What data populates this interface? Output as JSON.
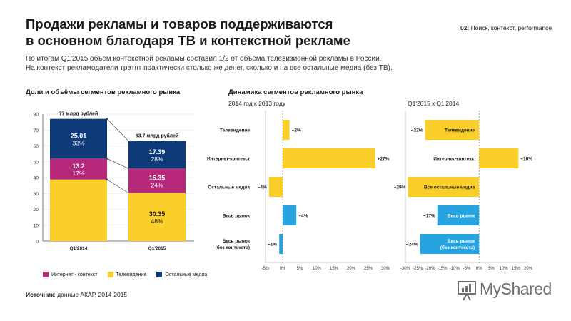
{
  "title_lines": [
    "Продажи рекламы и товаров поддерживаются",
    "в основном благодаря ТВ и контекстной рекламе"
  ],
  "section_tag": {
    "num": "02:",
    "text": " Поиск, контекст, performance"
  },
  "subtitle_lines": [
    "По итогам Q1'2015 объем контекстной рекламы составил 1/2 от объёма телевизионной рекламы в России.",
    "На контекст рекламодатели тратят практически столько же денег, сколько и на все остальные медиа (без ТВ)."
  ],
  "left_block_title": "Доли и объёмы сегментов рекламного рынка",
  "right_block_title": "Динамика сегментов рекламного рынка",
  "panel1_label": "2014 год  к 2013 году",
  "panel2_label": "Q1'2015 к Q1'2014",
  "source": {
    "label": "Источник",
    "text": ": данные АКАР, 2014-2015"
  },
  "colors": {
    "internet": "#b5287a",
    "tv": "#fbcf2a",
    "other": "#0e3a79",
    "blue": "#27a4e0"
  },
  "watermark": {
    "text": "MyShared"
  },
  "chart_data": [
    {
      "type": "bar",
      "stacked": true,
      "categories": [
        "Q1'2014",
        "Q1'2015"
      ],
      "totals": [
        "77 млрд рублей",
        "63.7 млрд рублей"
      ],
      "ylim": [
        0,
        80
      ],
      "yticks": [
        0,
        10,
        20,
        30,
        40,
        50,
        60,
        70,
        80
      ],
      "legend": [
        "Интернет - контекст",
        "Телевидение",
        "Остальные медиа"
      ],
      "series": [
        {
          "name": "Телевидение",
          "color": "#fbcf2a",
          "values": [
            38.79,
            30.35
          ],
          "value_labels": [
            "",
            "30.35"
          ],
          "pct_labels": [
            "",
            "48%"
          ]
        },
        {
          "name": "Интернет - контекст",
          "color": "#b5287a",
          "values": [
            13.2,
            15.35
          ],
          "value_labels": [
            "13.2",
            "15.35"
          ],
          "pct_labels": [
            "17%",
            "24%"
          ]
        },
        {
          "name": "Остальные медиа",
          "color": "#0e3a79",
          "values": [
            25.01,
            17.39
          ],
          "value_labels": [
            "25.01",
            "17.39"
          ],
          "pct_labels": [
            "33%",
            "28%"
          ]
        }
      ]
    },
    {
      "type": "bar",
      "orientation": "horizontal",
      "categories": [
        "Телевидение",
        "Интернет-контекст",
        "Остальные медиа",
        "Весь рынок",
        "Весь рынок (без контекста)"
      ],
      "values": [
        2,
        27,
        -4,
        4,
        -1
      ],
      "value_labels": [
        "+2%",
        "+27%",
        "−4%",
        "+4%",
        "−1%"
      ],
      "colors": [
        "#fbcf2a",
        "#fbcf2a",
        "#fbcf2a",
        "#27a4e0",
        "#27a4e0"
      ],
      "xlim": [
        -5,
        30
      ],
      "xticks": [
        "-5%",
        "0%",
        "5%",
        "10%",
        "15%",
        "20%",
        "25%",
        "30%"
      ]
    },
    {
      "type": "bar",
      "orientation": "horizontal",
      "categories": [
        "Телевидение",
        "Интернет-контекст",
        "Все остальные медиа",
        "Весь рынок",
        "Весь рынок (без контекста)"
      ],
      "values": [
        -22,
        16,
        -29,
        -17,
        -24
      ],
      "value_labels": [
        "−22%",
        "+16%",
        "−29%",
        "−17%",
        "−24%"
      ],
      "colors": [
        "#fbcf2a",
        "#fbcf2a",
        "#fbcf2a",
        "#27a4e0",
        "#27a4e0"
      ],
      "xlim": [
        -30,
        20
      ],
      "xticks": [
        "-30%",
        "-25%",
        "-20%",
        "-15%",
        "-10%",
        "-5%",
        "0%",
        "5%",
        "10%",
        "15%",
        "20%"
      ]
    }
  ]
}
